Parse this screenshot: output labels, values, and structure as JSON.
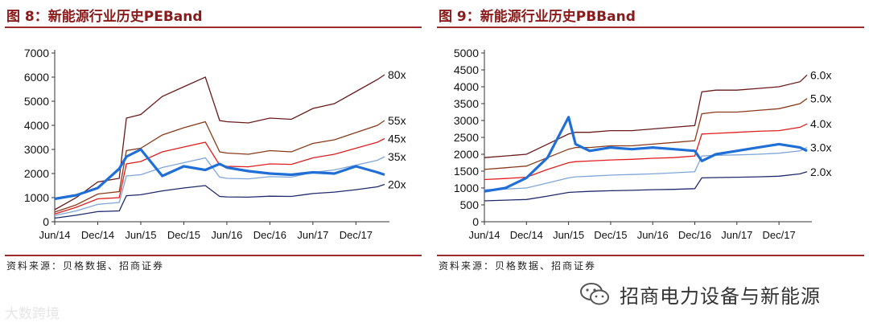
{
  "charts": {
    "left": {
      "title": "图 8：新能源行业历史PEBand",
      "source": "资料来源：贝格数据、招商证券"
    },
    "right": {
      "title": "图 9：新能源行业历史PBBand",
      "source": "资料来源：贝格数据、招商证券"
    }
  },
  "watermarks": {
    "left": "大数跨境",
    "right": "招商电力设备与新能源"
  },
  "chart_data": [
    {
      "type": "line",
      "title": "新能源行业历史PEBand",
      "x": [
        "2014-06",
        "2014-09",
        "2014-12",
        "2015-03",
        "2015-04",
        "2015-06",
        "2015-09",
        "2015-12",
        "2016-03",
        "2016-05",
        "2016-06",
        "2016-09",
        "2016-12",
        "2017-03",
        "2017-06",
        "2017-09",
        "2017-12",
        "2018-03",
        "2018-04"
      ],
      "x_tick_labels": [
        "Jun/14",
        "Dec/14",
        "Jun/15",
        "Dec/15",
        "Jun/16",
        "Dec/16",
        "Jun/17",
        "Dec/17"
      ],
      "ylim": [
        0,
        7000
      ],
      "y_ticks": [
        0,
        1000,
        2000,
        3000,
        4000,
        5000,
        6000,
        7000
      ],
      "band_colors": [
        "#1f2a6b",
        "#7fa6d8",
        "#e01e1e",
        "#8b3a1a",
        "#6b1a1a"
      ],
      "series": [
        {
          "name": "80x",
          "values": [
            500,
            1000,
            1650,
            1800,
            4300,
            4450,
            5200,
            5600,
            6000,
            4200,
            4150,
            4100,
            4300,
            4250,
            4700,
            4900,
            5400,
            5900,
            6100
          ]
        },
        {
          "name": "55x",
          "values": [
            400,
            700,
            1150,
            1250,
            2950,
            3050,
            3600,
            3900,
            4150,
            2900,
            2850,
            2800,
            2950,
            2900,
            3250,
            3400,
            3700,
            4000,
            4200
          ]
        },
        {
          "name": "45x",
          "values": [
            320,
            600,
            950,
            1000,
            2400,
            2500,
            2900,
            3100,
            3300,
            2350,
            2300,
            2280,
            2400,
            2380,
            2650,
            2800,
            3050,
            3300,
            3450
          ]
        },
        {
          "name": "35x",
          "values": [
            260,
            450,
            720,
            800,
            1900,
            1950,
            2250,
            2450,
            2650,
            1850,
            1800,
            1780,
            1870,
            1850,
            2050,
            2150,
            2350,
            2550,
            2700
          ]
        },
        {
          "name": "20x",
          "values": [
            150,
            270,
            420,
            450,
            1080,
            1120,
            1280,
            1400,
            1500,
            1050,
            1030,
            1020,
            1060,
            1050,
            1170,
            1230,
            1330,
            1450,
            1550
          ]
        },
        {
          "name": "",
          "values": [
            950,
            1100,
            1400,
            2200,
            2700,
            3000,
            1900,
            2300,
            2150,
            2400,
            2250,
            2100,
            2000,
            1950,
            2050,
            2000,
            2300,
            2050,
            1950
          ]
        }
      ]
    },
    {
      "type": "line",
      "title": "新能源行业历史PBBand",
      "x": [
        "2014-06",
        "2014-09",
        "2014-12",
        "2015-03",
        "2015-06",
        "2015-07",
        "2015-09",
        "2015-12",
        "2016-03",
        "2016-06",
        "2016-09",
        "2016-12",
        "2017-01",
        "2017-03",
        "2017-06",
        "2017-09",
        "2017-12",
        "2018-03",
        "2018-04"
      ],
      "x_tick_labels": [
        "Jun/14",
        "Dec/14",
        "Jun/15",
        "Dec/15",
        "Jun/16",
        "Dec/16",
        "Jun/17",
        "Dec/17"
      ],
      "ylim": [
        0,
        5000
      ],
      "y_ticks": [
        0,
        500,
        1000,
        1500,
        2000,
        2500,
        3000,
        3500,
        4000,
        4500,
        5000
      ],
      "band_colors": [
        "#1f2a6b",
        "#7fa6d8",
        "#e01e1e",
        "#8b3a1a",
        "#6b1a1a"
      ],
      "series": [
        {
          "name": "6.0x",
          "values": [
            1900,
            1950,
            2000,
            2300,
            2600,
            2650,
            2650,
            2700,
            2700,
            2750,
            2800,
            2850,
            3850,
            3900,
            3900,
            3950,
            4000,
            4150,
            4350
          ]
        },
        {
          "name": "5.0x",
          "values": [
            1550,
            1600,
            1650,
            1900,
            2150,
            2200,
            2200,
            2250,
            2250,
            2300,
            2350,
            2400,
            3200,
            3250,
            3250,
            3300,
            3350,
            3500,
            3650
          ]
        },
        {
          "name": "4.0x",
          "values": [
            1250,
            1280,
            1320,
            1550,
            1750,
            1780,
            1800,
            1830,
            1850,
            1880,
            1900,
            1950,
            2600,
            2620,
            2650,
            2680,
            2700,
            2800,
            2900
          ]
        },
        {
          "name": "3.0x",
          "values": [
            950,
            970,
            1000,
            1150,
            1300,
            1330,
            1350,
            1380,
            1400,
            1420,
            1450,
            1480,
            1950,
            1970,
            1980,
            2000,
            2030,
            2100,
            2200
          ]
        },
        {
          "name": "2.0x",
          "values": [
            620,
            640,
            660,
            760,
            870,
            880,
            900,
            920,
            930,
            950,
            960,
            980,
            1300,
            1310,
            1320,
            1330,
            1350,
            1420,
            1480
          ]
        },
        {
          "name": "",
          "values": [
            900,
            1000,
            1300,
            1900,
            3100,
            2300,
            2100,
            2200,
            2150,
            2200,
            2150,
            2100,
            1800,
            2000,
            2100,
            2200,
            2300,
            2200,
            2100
          ]
        }
      ]
    }
  ]
}
